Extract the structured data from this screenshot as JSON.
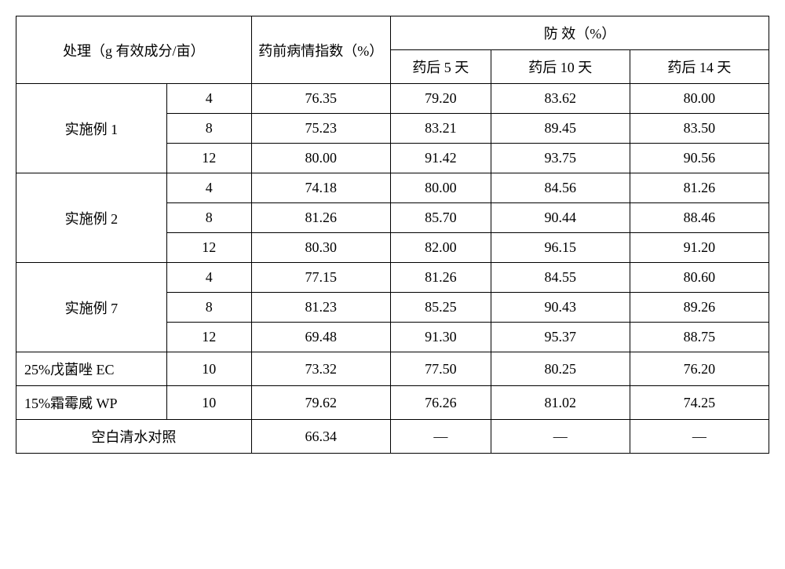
{
  "headers": {
    "treatment": "处理（g 有效成分/亩）",
    "pre_index": "药前病情指数（%）",
    "efficacy_group": "防        效（%）",
    "day5": "药后 5 天",
    "day10": "药后 10 天",
    "day14": "药后 14 天"
  },
  "groups": [
    {
      "label": "实施例 1",
      "rows": [
        {
          "dose": "4",
          "pre": "76.35",
          "d5": "79.20",
          "d10": "83.62",
          "d14": "80.00"
        },
        {
          "dose": "8",
          "pre": "75.23",
          "d5": "83.21",
          "d10": "89.45",
          "d14": "83.50"
        },
        {
          "dose": "12",
          "pre": "80.00",
          "d5": "91.42",
          "d10": "93.75",
          "d14": "90.56"
        }
      ]
    },
    {
      "label": "实施例 2",
      "rows": [
        {
          "dose": "4",
          "pre": "74.18",
          "d5": "80.00",
          "d10": "84.56",
          "d14": "81.26"
        },
        {
          "dose": "8",
          "pre": "81.26",
          "d5": "85.70",
          "d10": "90.44",
          "d14": "88.46"
        },
        {
          "dose": "12",
          "pre": "80.30",
          "d5": "82.00",
          "d10": "96.15",
          "d14": "91.20"
        }
      ]
    },
    {
      "label": "实施例 7",
      "rows": [
        {
          "dose": "4",
          "pre": "77.15",
          "d5": "81.26",
          "d10": "84.55",
          "d14": "80.60"
        },
        {
          "dose": "8",
          "pre": "81.23",
          "d5": "85.25",
          "d10": "90.43",
          "d14": "89.26"
        },
        {
          "dose": "12",
          "pre": "69.48",
          "d5": "91.30",
          "d10": "95.37",
          "d14": "88.75"
        }
      ]
    }
  ],
  "single_rows": [
    {
      "label": "25%戊菌唑 EC",
      "dose": "10",
      "pre": "73.32",
      "d5": "77.50",
      "d10": "80.25",
      "d14": "76.20"
    },
    {
      "label": "15%霜霉威 WP",
      "dose": "10",
      "pre": "79.62",
      "d5": "76.26",
      "d10": "81.02",
      "d14": "74.25"
    }
  ],
  "blank_row": {
    "label": "空白清水对照",
    "pre": "66.34",
    "d5": "—",
    "d10": "—",
    "d14": "—"
  }
}
